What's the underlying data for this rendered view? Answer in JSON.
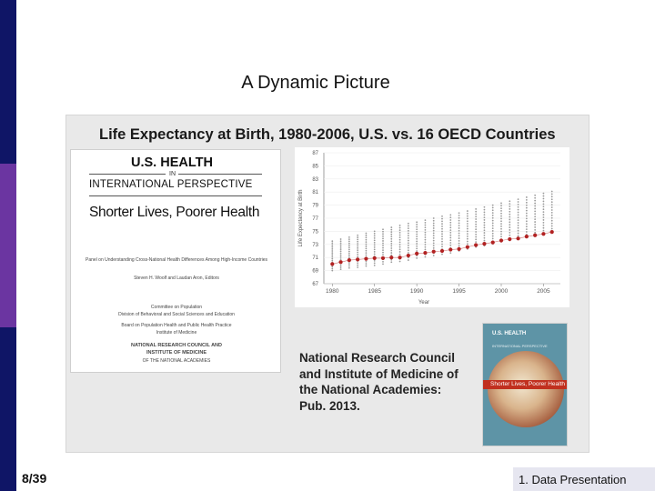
{
  "slide": {
    "title": "A Dynamic Picture",
    "page_number": "8/39",
    "section_label": "1. Data Presentation",
    "sidebar_colors": [
      "#0f1566",
      "#6b35a1",
      "#0f1566"
    ]
  },
  "panel": {
    "title": "Life Expectancy at Birth, 1980-2006, U.S. vs. 16 OECD Countries",
    "caption": "National Research Council and Institute of Medicine of the National Academies: Pub. 2013."
  },
  "report_cover": {
    "line1": "U.S. HEALTH",
    "line2": "IN",
    "line3": "INTERNATIONAL PERSPECTIVE",
    "line4": "Shorter Lives, Poorer Health",
    "panel_text": "Panel on Understanding Cross-National Health Differences Among High-Income Countries",
    "editors": "Steven H. Woolf and Laudan Aron, Editors",
    "committee": "Committee on Population",
    "division": "Division of Behavioral and Social Sciences and Education",
    "board": "Board on Population Health and Public Health Practice",
    "institute": "Institute of Medicine",
    "org1": "NATIONAL RESEARCH COUNCIL AND",
    "org2": "INSTITUTE OF MEDICINE",
    "org3": "OF THE NATIONAL ACADEMIES"
  },
  "book_cover": {
    "title": "U.S. HEALTH",
    "subtitle": "INTERNATIONAL PERSPECTIVE",
    "band": "Shorter Lives, Poorer Health"
  },
  "chart_data": {
    "type": "scatter",
    "title": "",
    "xlabel": "Year",
    "ylabel": "Life Expectancy at Birth",
    "xlim": [
      1979,
      2007
    ],
    "ylim": [
      67,
      87
    ],
    "x_ticks": [
      1980,
      1985,
      1990,
      1995,
      2000,
      2005
    ],
    "y_ticks": [
      67,
      69,
      71,
      73,
      75,
      77,
      79,
      81,
      83,
      85,
      87
    ],
    "series": [
      {
        "name": "U.S.",
        "color": "#b22222",
        "x": [
          1980,
          1981,
          1982,
          1983,
          1984,
          1985,
          1986,
          1987,
          1988,
          1989,
          1990,
          1991,
          1992,
          1993,
          1994,
          1995,
          1996,
          1997,
          1998,
          1999,
          2000,
          2001,
          2002,
          2003,
          2004,
          2005,
          2006
        ],
        "y": [
          70.0,
          70.3,
          70.6,
          70.7,
          70.8,
          70.9,
          70.9,
          71.0,
          71.0,
          71.3,
          71.6,
          71.7,
          71.9,
          72.0,
          72.2,
          72.3,
          72.6,
          72.9,
          73.1,
          73.3,
          73.6,
          73.8,
          73.9,
          74.2,
          74.4,
          74.6,
          74.9
        ]
      },
      {
        "name": "16 OECD Countries",
        "color": "#9a9a9a",
        "x": [
          1980,
          1981,
          1982,
          1983,
          1984,
          1985,
          1986,
          1987,
          1988,
          1989,
          1990,
          1991,
          1992,
          1993,
          1994,
          1995,
          1996,
          1997,
          1998,
          1999,
          2000,
          2001,
          2002,
          2003,
          2004,
          2005,
          2006
        ],
        "y_min": [
          69.0,
          69.2,
          69.4,
          69.5,
          69.7,
          69.8,
          70.0,
          70.3,
          70.4,
          70.6,
          70.9,
          71.1,
          71.3,
          71.5,
          71.7,
          72.0,
          72.3,
          72.6,
          72.8,
          73.1,
          73.4,
          73.6,
          73.9,
          74.1,
          74.4,
          74.7,
          75.0
        ],
        "y_max": [
          73.5,
          73.8,
          74.1,
          74.4,
          74.7,
          75.0,
          75.3,
          75.6,
          75.9,
          76.2,
          76.4,
          76.7,
          77.0,
          77.3,
          77.5,
          77.8,
          78.1,
          78.4,
          78.7,
          79.0,
          79.3,
          79.6,
          79.9,
          80.2,
          80.5,
          80.8,
          81.1
        ]
      }
    ]
  }
}
